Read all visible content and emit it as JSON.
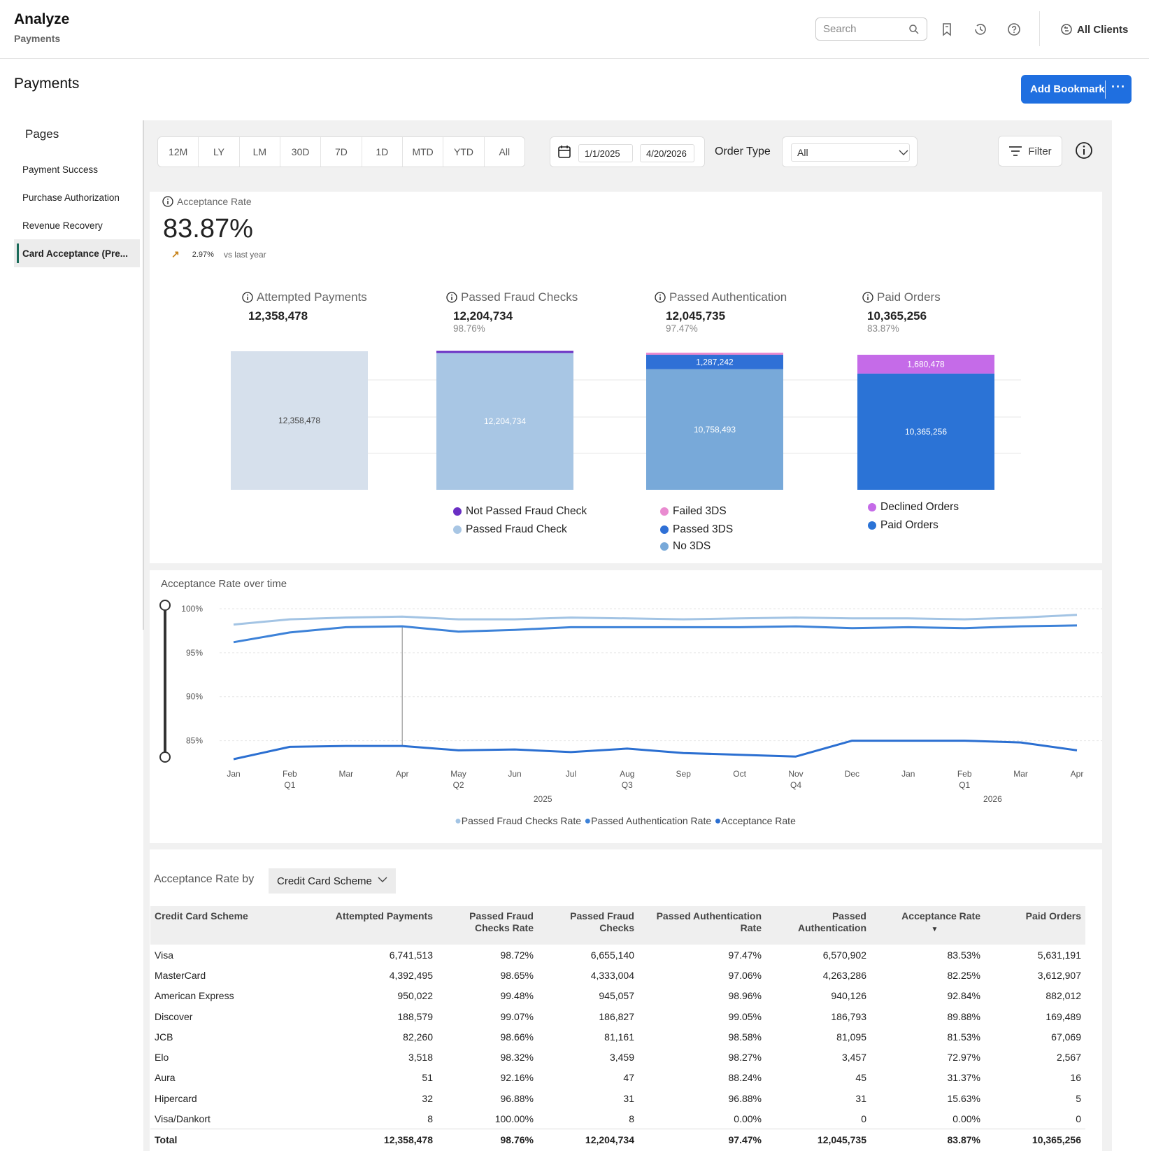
{
  "header": {
    "app_title": "Analyze",
    "app_subtitle": "Payments",
    "search_placeholder": "Search",
    "clients_label": "All Clients"
  },
  "page": {
    "title": "Payments",
    "bookmark_label": "Add Bookmark",
    "more_label": "···"
  },
  "sidebar": {
    "heading": "Pages",
    "items": [
      {
        "label": "Payment Success"
      },
      {
        "label": "Purchase Authorization"
      },
      {
        "label": "Revenue Recovery"
      },
      {
        "label": "Card Acceptance (Pre..."
      }
    ]
  },
  "filters": {
    "periods": [
      "12M",
      "LY",
      "LM",
      "30D",
      "7D",
      "1D",
      "MTD",
      "YTD",
      "All"
    ],
    "start_date": "1/1/2025",
    "end_date": "4/20/2026",
    "order_type_label": "Order Type",
    "order_type_value": "All",
    "filter_label": "Filter"
  },
  "kpi": {
    "label": "Acceptance Rate",
    "value": "83.87%",
    "delta": "2.97%",
    "delta_text": "vs last year"
  },
  "funnel": {
    "stages": [
      {
        "label": "Attempted Payments",
        "value": "12,358,478",
        "pct": ""
      },
      {
        "label": "Passed Fraud Checks",
        "value": "12,204,734",
        "pct": "98.76%"
      },
      {
        "label": "Passed Authentication",
        "value": "12,045,735",
        "pct": "97.47%"
      },
      {
        "label": "Paid Orders",
        "value": "10,365,256",
        "pct": "83.87%"
      }
    ],
    "bars": [
      {
        "segments": [
          {
            "value": 12358478,
            "label": "12,358,478",
            "color": "#d6e0ec",
            "text_color": "#444"
          }
        ]
      },
      {
        "segments": [
          {
            "value": 12204734,
            "label": "12,204,734",
            "color": "#a8c6e4",
            "text_color": "#fff"
          },
          {
            "value": 153744,
            "label": "",
            "color": "#6a2fc4",
            "text_color": "#fff"
          }
        ]
      },
      {
        "segments": [
          {
            "value": 10758493,
            "label": "10,758,493",
            "color": "#78a9d9",
            "text_color": "#fff"
          },
          {
            "value": 1287242,
            "label": "1,287,242",
            "color": "#2f70d6",
            "text_color": "#fff"
          },
          {
            "value": 158999,
            "label": "",
            "color": "#e98bd0",
            "text_color": "#fff"
          }
        ]
      },
      {
        "segments": [
          {
            "value": 10365256,
            "label": "10,365,256",
            "color": "#2b73d6",
            "text_color": "#fff"
          },
          {
            "value": 1680478,
            "label": "1,680,478",
            "color": "#c56be8",
            "text_color": "#fff"
          }
        ]
      }
    ],
    "legends": [
      [],
      [
        {
          "label": "Not Passed Fraud Check",
          "color": "#6a2fc4"
        },
        {
          "label": "Passed Fraud Check",
          "color": "#a8c6e4"
        }
      ],
      [
        {
          "label": "Failed 3DS",
          "color": "#e98bd0"
        },
        {
          "label": "Passed 3DS",
          "color": "#2f70d6"
        },
        {
          "label": "No 3DS",
          "color": "#78a9d9"
        }
      ],
      [
        {
          "label": "Declined Orders",
          "color": "#c56be8"
        },
        {
          "label": "Paid Orders",
          "color": "#2b73d6"
        }
      ]
    ]
  },
  "chart_data": {
    "type": "line",
    "title": "Acceptance Rate over time",
    "x": [
      "Jan",
      "Feb",
      "Mar",
      "Apr",
      "May",
      "Jun",
      "Jul",
      "Aug",
      "Sep",
      "Oct",
      "Nov",
      "Dec",
      "Jan",
      "Feb",
      "Mar",
      "Apr"
    ],
    "x_sub": [
      "",
      "Q1",
      "",
      "",
      "Q2",
      "",
      "",
      "Q3",
      "",
      "",
      "Q4",
      "",
      "",
      "Q1",
      "",
      ""
    ],
    "years": [
      {
        "label": "2025",
        "at": 5.5
      },
      {
        "label": "2026",
        "at": 13.5
      }
    ],
    "ylim": [
      82.5,
      100
    ],
    "y_ticks": [
      85,
      90,
      95,
      100
    ],
    "y_tick_labels": [
      "85%",
      "90%",
      "95%",
      "100%"
    ],
    "grid": true,
    "legend": "bottom",
    "series": [
      {
        "name": "Passed Fraud Checks Rate",
        "color": "#a3c4e4",
        "values": [
          98.2,
          98.8,
          99.0,
          99.1,
          98.8,
          98.8,
          99.0,
          98.9,
          98.8,
          98.9,
          99.0,
          98.9,
          98.9,
          98.8,
          99.0,
          99.3
        ]
      },
      {
        "name": "Passed Authentication Rate",
        "color": "#3d82d8",
        "values": [
          96.2,
          97.3,
          97.9,
          98.0,
          97.4,
          97.6,
          97.9,
          97.9,
          97.9,
          97.9,
          98.0,
          97.8,
          97.9,
          97.8,
          98.0,
          98.1
        ]
      },
      {
        "name": "Acceptance Rate",
        "color": "#2b6fd1",
        "values": [
          82.9,
          84.3,
          84.4,
          84.4,
          83.9,
          84.0,
          83.7,
          84.1,
          83.6,
          83.4,
          83.2,
          85.0,
          85.0,
          85.0,
          84.8,
          83.9
        ]
      }
    ]
  },
  "table": {
    "title": "Acceptance Rate by",
    "group_by": "Credit Card Scheme",
    "columns": [
      "Credit Card Scheme",
      "Attempted Payments",
      "Passed Fraud Checks Rate",
      "Passed Fraud Checks",
      "Passed Authentication Rate",
      "Passed Authentication",
      "Acceptance Rate",
      "Paid Orders"
    ],
    "rows": [
      [
        "Visa",
        "6,741,513",
        "98.72%",
        "6,655,140",
        "97.47%",
        "6,570,902",
        "83.53%",
        "5,631,191"
      ],
      [
        "MasterCard",
        "4,392,495",
        "98.65%",
        "4,333,004",
        "97.06%",
        "4,263,286",
        "82.25%",
        "3,612,907"
      ],
      [
        "American Express",
        "950,022",
        "99.48%",
        "945,057",
        "98.96%",
        "940,126",
        "92.84%",
        "882,012"
      ],
      [
        "Discover",
        "188,579",
        "99.07%",
        "186,827",
        "99.05%",
        "186,793",
        "89.88%",
        "169,489"
      ],
      [
        "JCB",
        "82,260",
        "98.66%",
        "81,161",
        "98.58%",
        "81,095",
        "81.53%",
        "67,069"
      ],
      [
        "Elo",
        "3,518",
        "98.32%",
        "3,459",
        "98.27%",
        "3,457",
        "72.97%",
        "2,567"
      ],
      [
        "Aura",
        "51",
        "92.16%",
        "47",
        "88.24%",
        "45",
        "31.37%",
        "16"
      ],
      [
        "Hipercard",
        "32",
        "96.88%",
        "31",
        "96.88%",
        "31",
        "15.63%",
        "5"
      ],
      [
        "Visa/Dankort",
        "8",
        "100.00%",
        "8",
        "0.00%",
        "0",
        "0.00%",
        "0"
      ]
    ],
    "total": [
      "Total",
      "12,358,478",
      "98.76%",
      "12,204,734",
      "97.47%",
      "12,045,735",
      "83.87%",
      "10,365,256"
    ]
  }
}
